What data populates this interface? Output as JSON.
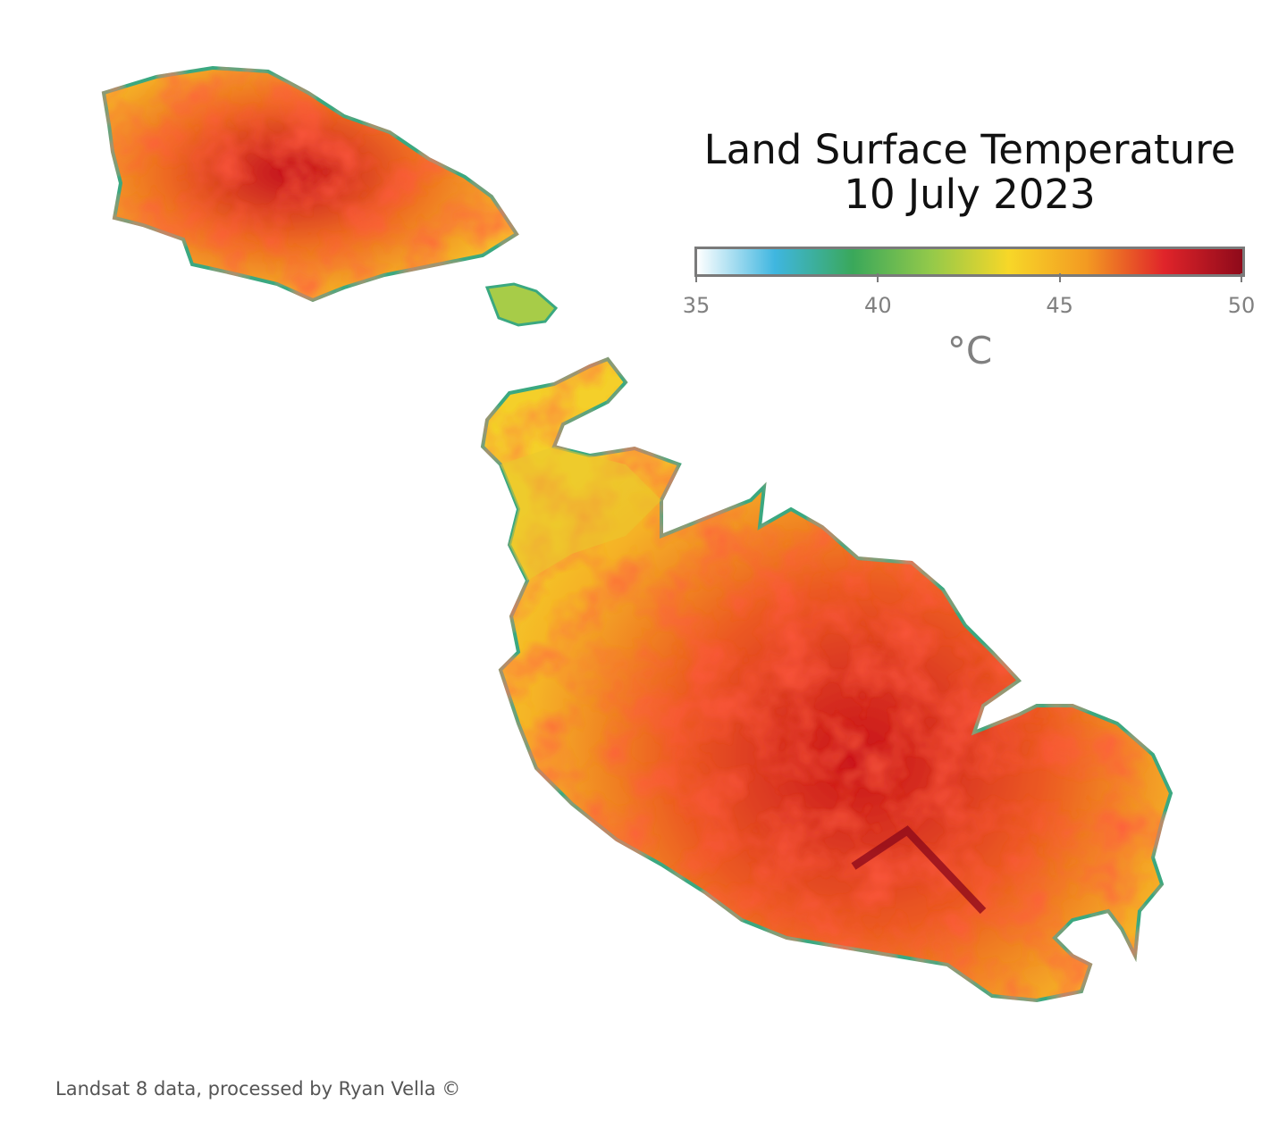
{
  "title": {
    "line1": "Land Surface Temperature",
    "line2": "10 July 2023"
  },
  "colorbar": {
    "min": 35,
    "max": 50,
    "ticks": [
      "35",
      "40",
      "45",
      "50"
    ],
    "unit": "°C",
    "stops": [
      "#ffffff",
      "#3fb6e0",
      "#3aa85a",
      "#93c94a",
      "#f7d728",
      "#f39a22",
      "#e0242a",
      "#8e0a1a"
    ]
  },
  "map": {
    "islands": [
      "Gozo",
      "Comino",
      "Malta"
    ],
    "edge_color": "#3aa880",
    "land_fill": "#f2a21f"
  },
  "credit": "Landsat 8 data, processed by Ryan Vella ©"
}
